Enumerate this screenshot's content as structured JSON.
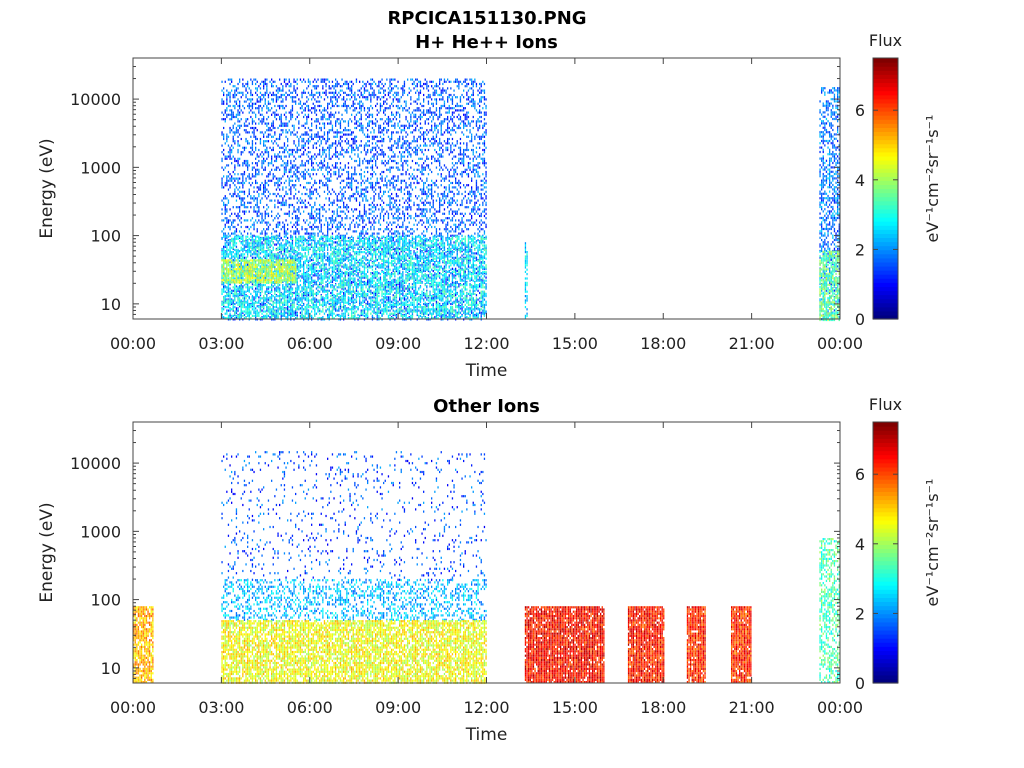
{
  "figure_title": "RPCICA151130.PNG",
  "chart_data": [
    {
      "type": "heatmap",
      "title": "H+ He++ Ions",
      "xlabel": "Time",
      "ylabel": "Energy (eV)",
      "x_ticks": [
        "00:00",
        "03:00",
        "06:00",
        "09:00",
        "12:00",
        "15:00",
        "18:00",
        "21:00",
        "00:00"
      ],
      "x_range_hours": [
        0,
        24
      ],
      "y_scale": "log",
      "y_ticks": [
        10,
        100,
        1000,
        10000
      ],
      "y_tick_labels": [
        "10",
        "100",
        "1000",
        "10000"
      ],
      "y_range": [
        6,
        40000
      ],
      "colorbar": {
        "label": "Flux",
        "units": "eV⁻¹cm⁻²sr⁻¹s⁻¹",
        "range": [
          0,
          7.5
        ],
        "ticks": [
          0,
          2,
          4,
          6
        ],
        "colormap": "jet"
      },
      "regions": [
        {
          "t_start": 3.0,
          "t_end": 12.0,
          "e_min": 6,
          "e_max": 20000,
          "flux_level": 1.6,
          "density": 0.35
        },
        {
          "t_start": 3.0,
          "t_end": 12.0,
          "e_min": 6,
          "e_max": 100,
          "flux_level": 2.8,
          "density": 0.55
        },
        {
          "t_start": 3.0,
          "t_end": 5.5,
          "e_min": 20,
          "e_max": 45,
          "flux_level": 4.2,
          "density": 0.8
        },
        {
          "t_start": 13.3,
          "t_end": 13.4,
          "e_min": 6,
          "e_max": 80,
          "flux_level": 2.6,
          "density": 0.6
        },
        {
          "t_start": 23.3,
          "t_end": 24.0,
          "e_min": 6,
          "e_max": 15000,
          "flux_level": 1.8,
          "density": 0.45
        },
        {
          "t_start": 23.3,
          "t_end": 24.0,
          "e_min": 6,
          "e_max": 60,
          "flux_level": 3.6,
          "density": 0.7
        }
      ]
    },
    {
      "type": "heatmap",
      "title": "Other Ions",
      "xlabel": "Time",
      "ylabel": "Energy (eV)",
      "x_ticks": [
        "00:00",
        "03:00",
        "06:00",
        "09:00",
        "12:00",
        "15:00",
        "18:00",
        "21:00",
        "00:00"
      ],
      "x_range_hours": [
        0,
        24
      ],
      "y_scale": "log",
      "y_ticks": [
        10,
        100,
        1000,
        10000
      ],
      "y_tick_labels": [
        "10",
        "100",
        "1000",
        "10000"
      ],
      "y_range": [
        6,
        40000
      ],
      "colorbar": {
        "label": "Flux",
        "units": "eV⁻¹cm⁻²sr⁻¹s⁻¹",
        "range": [
          0,
          7.5
        ],
        "ticks": [
          0,
          2,
          4,
          6
        ],
        "colormap": "jet"
      },
      "regions": [
        {
          "t_start": 0.0,
          "t_end": 0.7,
          "e_min": 6,
          "e_max": 80,
          "flux_level": 5.2,
          "density": 0.8
        },
        {
          "t_start": 3.0,
          "t_end": 12.0,
          "e_min": 200,
          "e_max": 15000,
          "flux_level": 1.5,
          "density": 0.08
        },
        {
          "t_start": 3.0,
          "t_end": 12.0,
          "e_min": 50,
          "e_max": 200,
          "flux_level": 2.3,
          "density": 0.35
        },
        {
          "t_start": 3.0,
          "t_end": 12.0,
          "e_min": 6,
          "e_max": 50,
          "flux_level": 4.6,
          "density": 0.75
        },
        {
          "t_start": 13.3,
          "t_end": 16.0,
          "e_min": 6,
          "e_max": 80,
          "flux_level": 6.5,
          "density": 0.92
        },
        {
          "t_start": 16.8,
          "t_end": 18.0,
          "e_min": 6,
          "e_max": 80,
          "flux_level": 6.4,
          "density": 0.92
        },
        {
          "t_start": 18.8,
          "t_end": 19.4,
          "e_min": 6,
          "e_max": 80,
          "flux_level": 6.3,
          "density": 0.92
        },
        {
          "t_start": 20.3,
          "t_end": 21.0,
          "e_min": 6,
          "e_max": 80,
          "flux_level": 6.2,
          "density": 0.92
        },
        {
          "t_start": 23.3,
          "t_end": 24.0,
          "e_min": 6,
          "e_max": 800,
          "flux_level": 3.4,
          "density": 0.5
        }
      ]
    }
  ]
}
